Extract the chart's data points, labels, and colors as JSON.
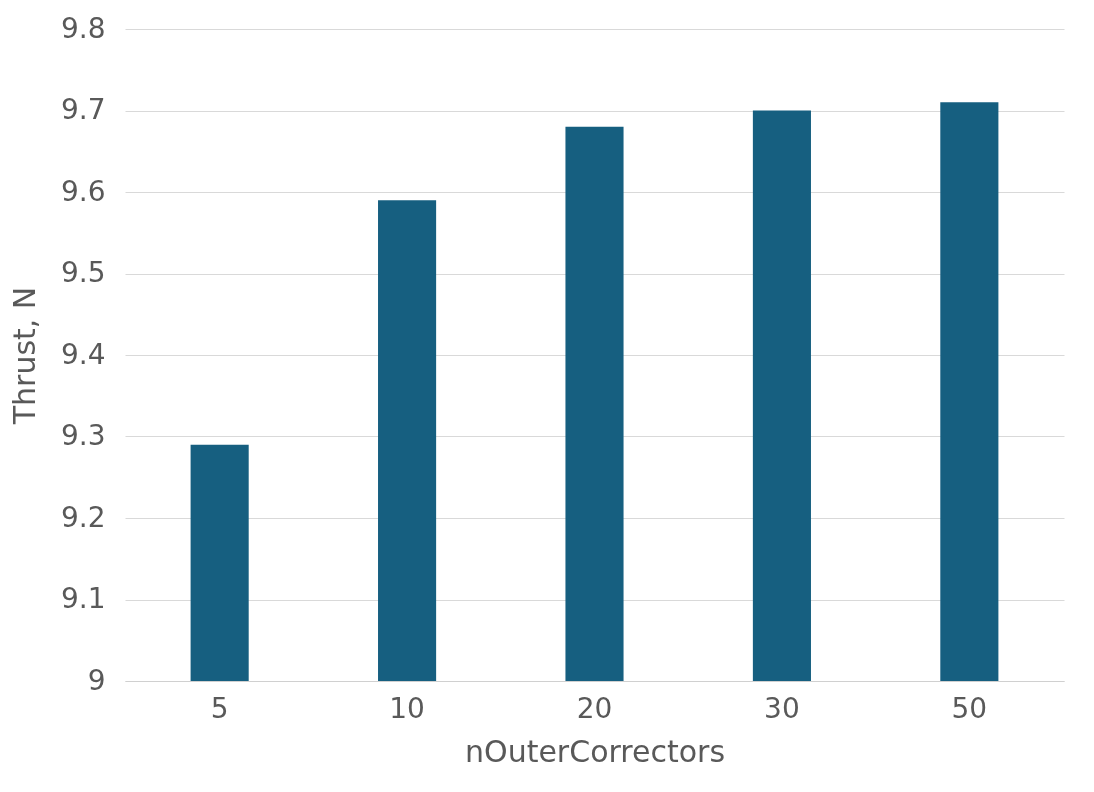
{
  "chart_data": {
    "type": "bar",
    "xlabel": "nOuterCorrectors",
    "ylabel": "Thrust, N",
    "categories": [
      "5",
      "10",
      "20",
      "30",
      "50"
    ],
    "series": [
      {
        "color": "#165f80",
        "values": [
          9.29,
          9.59,
          9.68,
          9.7,
          9.71
        ]
      }
    ],
    "ylim": [
      9,
      9.8
    ],
    "yticks": [
      {
        "value": 9,
        "label": "9"
      },
      9.1,
      9.2,
      9.3,
      9.4,
      9.5,
      9.6,
      9.7,
      9.8
    ],
    "grid": "y",
    "legend": false
  }
}
